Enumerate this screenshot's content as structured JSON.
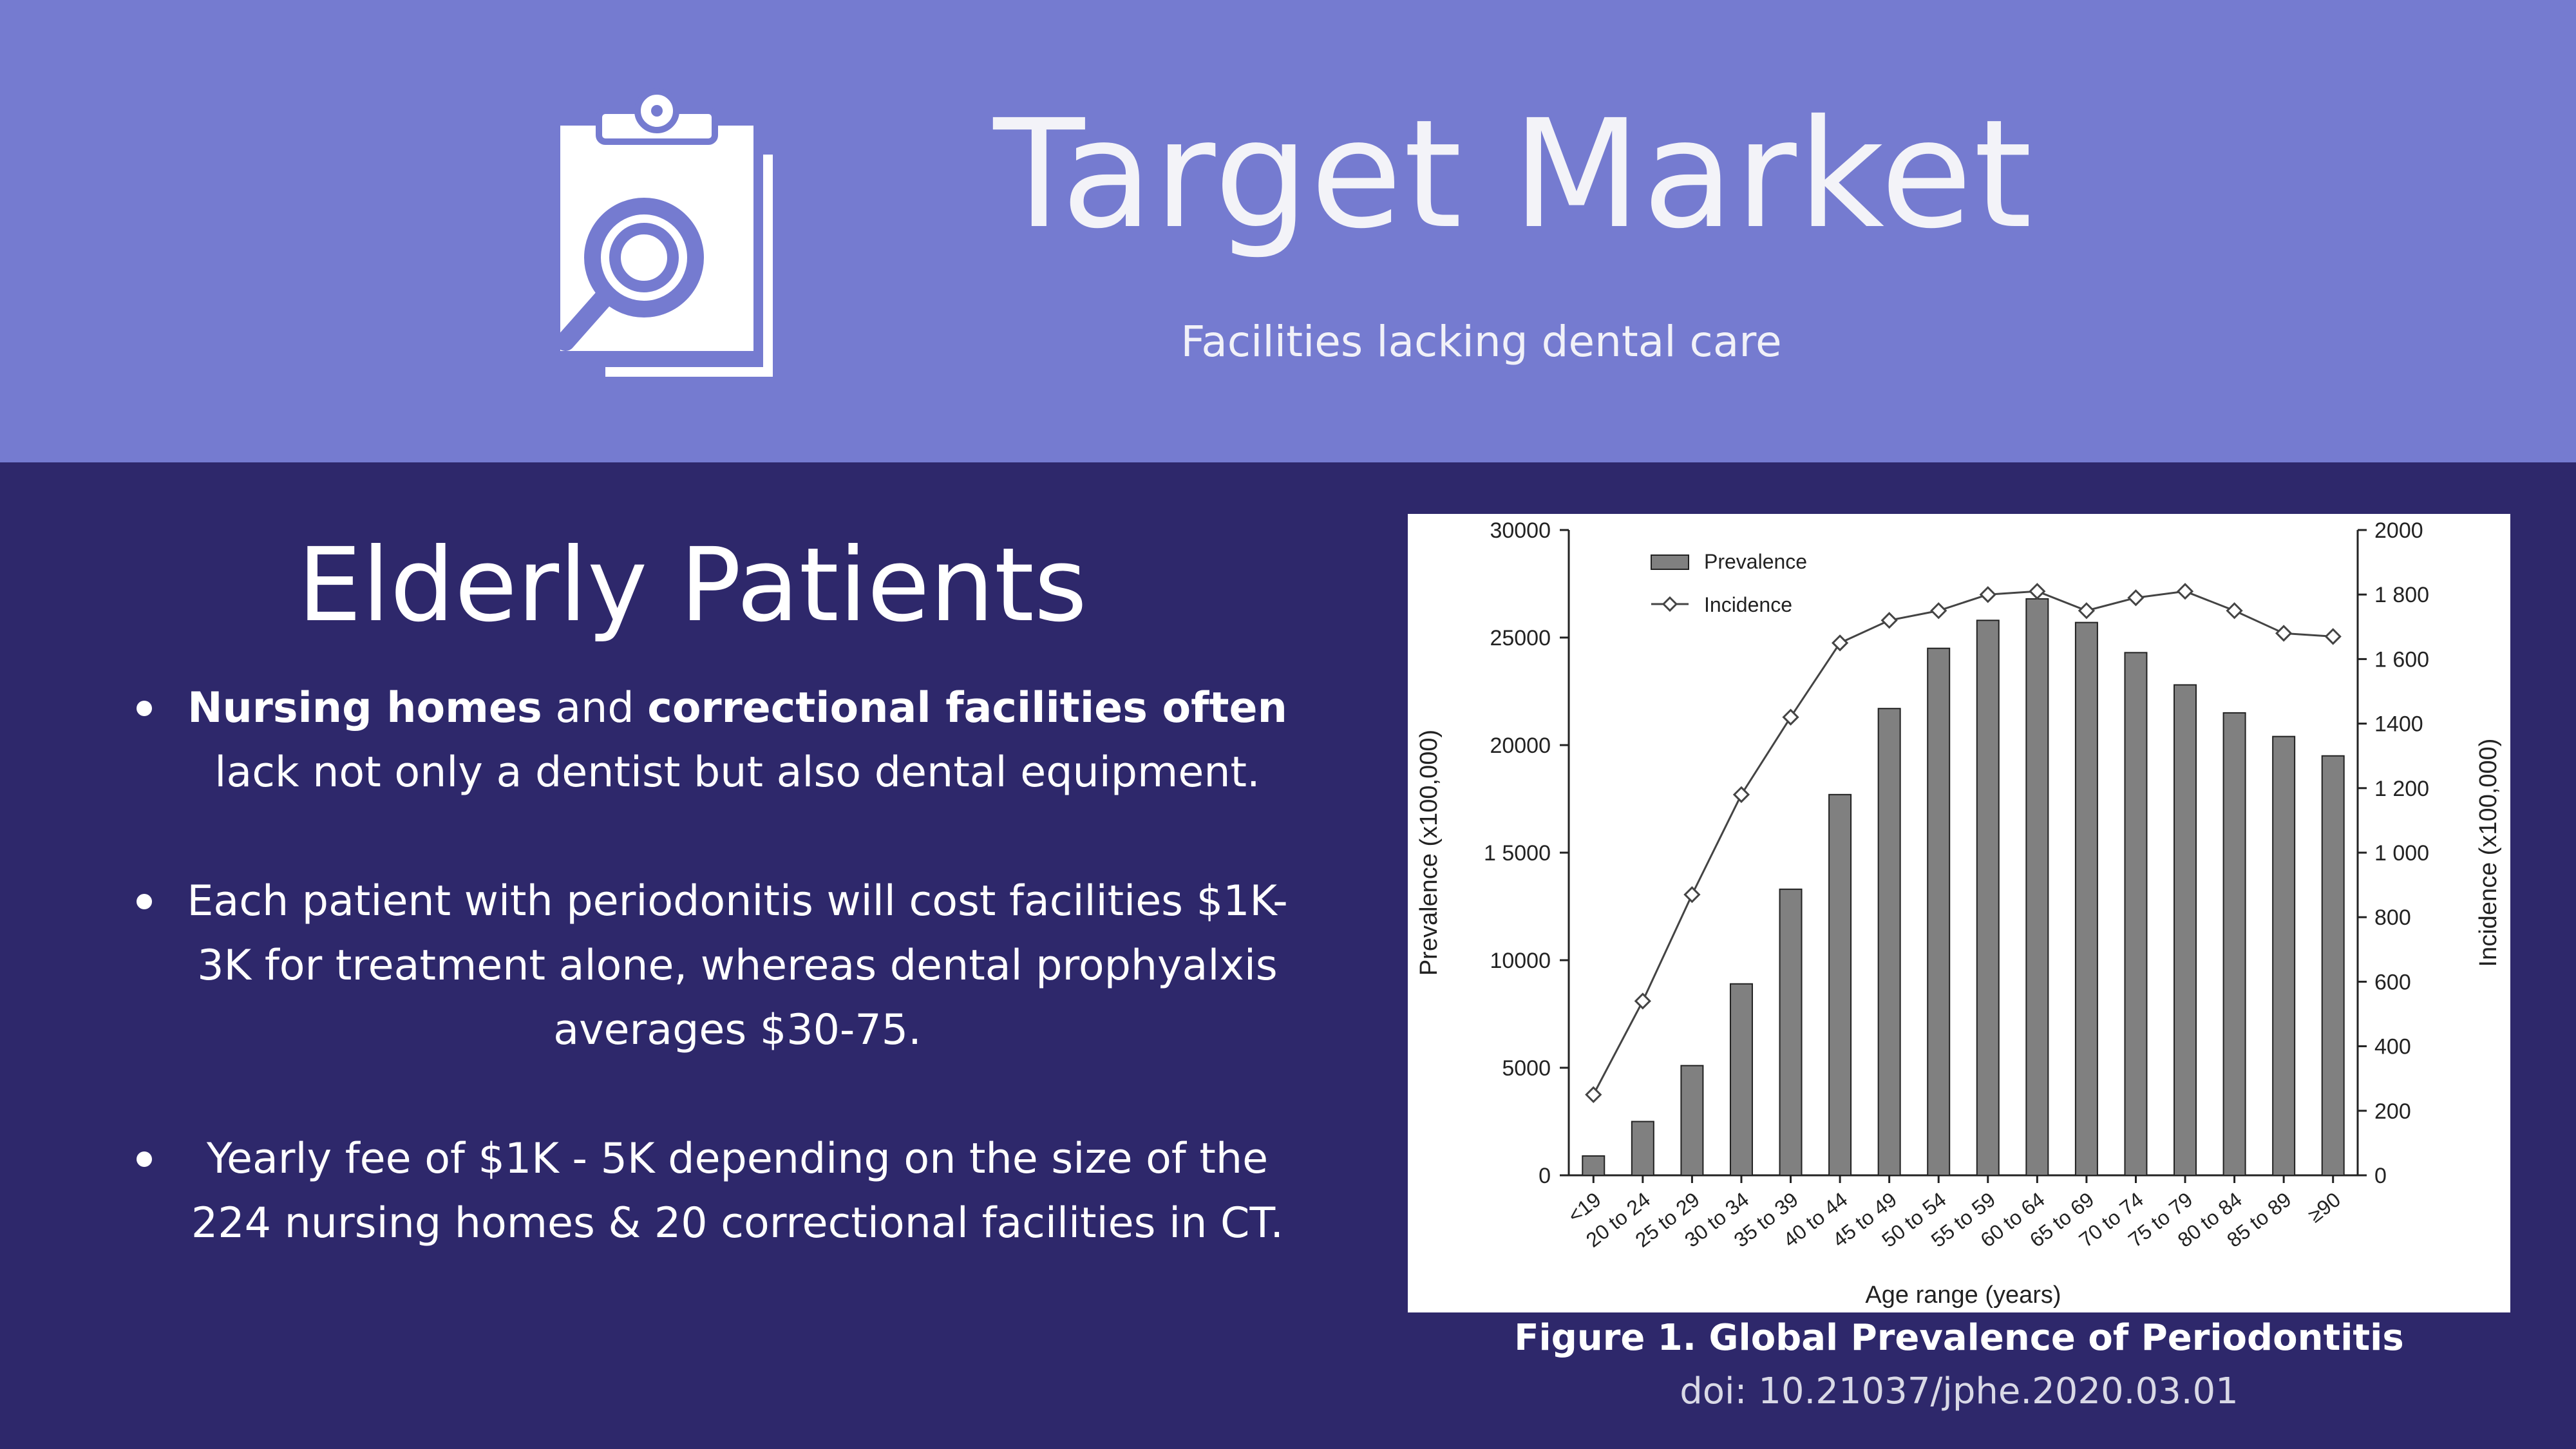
{
  "header": {
    "title": "Target Market",
    "subtitle": "Facilities lacking dental care",
    "icon": "clipboard-search-icon"
  },
  "section": {
    "title": "Elderly Patients",
    "bullets": [
      {
        "part1": "Nursing homes",
        "part2": " and ",
        "part3": "correctional facilities often",
        "part4": " lack not only a dentist but also dental equipment."
      },
      {
        "text": "Each patient with periodonitis will cost facilities $1K-3K for treatment alone, whereas dental prophyalxis averages $30-75."
      },
      {
        "text": "Yearly fee of $1K - 5K depending on the size of the 224 nursing homes & 20 correctional facilities in CT."
      }
    ]
  },
  "figure": {
    "caption": "Figure 1. Global Prevalence of Periodontitis",
    "doi": "doi: 10.21037/jphe.2020.03.01"
  },
  "colors": {
    "header_bg": "#757bd0",
    "body_bg": "#2e286b",
    "bar": "#808080"
  },
  "chart_data": {
    "type": "bar",
    "xlabel": "Age range (years)",
    "ylabel": "Prevalence (x100,000)",
    "y2label": "Incidence (x100,000)",
    "ylim": [
      0,
      30000
    ],
    "y2lim": [
      0,
      2000
    ],
    "yticks": [
      "0",
      "5000",
      "10000",
      "1 5000",
      "20000",
      "25000",
      "30000"
    ],
    "y2ticks": [
      "0",
      "200",
      "400",
      "600",
      "800",
      "1 000",
      "1 200",
      "1400",
      "1 600",
      "1 800",
      "2000"
    ],
    "legend_position": "top-left",
    "categories": [
      "<19",
      "20 to 24",
      "25 to 29",
      "30 to 34",
      "35 to 39",
      "40 to 44",
      "45 to 49",
      "50 to 54",
      "55 to 59",
      "60 to 64",
      "65 to 69",
      "70 to 74",
      "75 to 79",
      "80 to 84",
      "85 to 89",
      "≥90"
    ],
    "series": [
      {
        "name": "Prevalence",
        "kind": "bar",
        "axis": "left",
        "values": [
          900,
          2500,
          5100,
          8900,
          13300,
          17700,
          21700,
          24500,
          25800,
          26800,
          25700,
          24300,
          22800,
          21500,
          20400,
          19500
        ]
      },
      {
        "name": "Incidence",
        "kind": "line",
        "axis": "right",
        "values": [
          250,
          540,
          870,
          1180,
          1420,
          1650,
          1720,
          1750,
          1800,
          1810,
          1750,
          1790,
          1810,
          1750,
          1680,
          1670
        ]
      }
    ]
  }
}
